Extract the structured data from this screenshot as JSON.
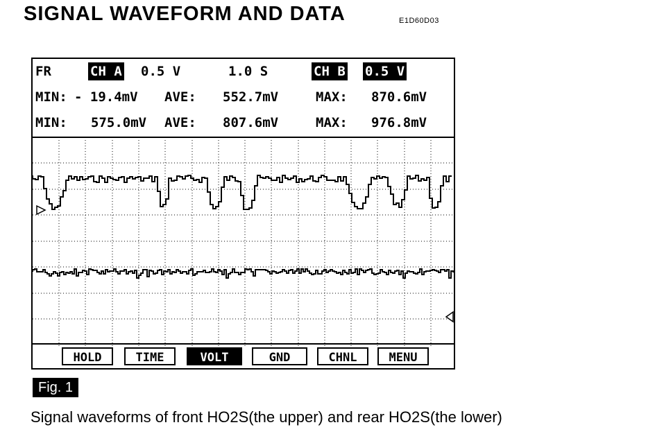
{
  "title": "SIGNAL WAVEFORM AND DATA",
  "doc_code": "E1D60D03",
  "scope": {
    "mode": "FR",
    "ch_a": {
      "label": "CH A",
      "volts_div": "0.5 V"
    },
    "time_div": "1.0 S",
    "ch_b": {
      "label": "CH B",
      "volts_div": "0.5 V"
    },
    "stats_a": {
      "min_label": "MIN:",
      "min": "- 19.4mV",
      "ave_label": "AVE:",
      "ave": "552.7mV",
      "max_label": "MAX:",
      "max": "870.6mV"
    },
    "stats_b": {
      "min_label": "MIN:",
      "min": "575.0mV",
      "ave_label": "AVE:",
      "ave": "807.6mV",
      "max_label": "MAX:",
      "max": "976.8mV"
    },
    "buttons": [
      {
        "label": "HOLD",
        "active": false
      },
      {
        "label": "TIME",
        "active": false
      },
      {
        "label": "VOLT",
        "active": true
      },
      {
        "label": "GND",
        "active": false
      },
      {
        "label": "CHNL",
        "active": false
      },
      {
        "label": "MENU",
        "active": false
      }
    ]
  },
  "figure_label": "Fig. 1",
  "caption": "Signal waveforms of front HO2S(the upper) and rear HO2S(the lower)"
}
